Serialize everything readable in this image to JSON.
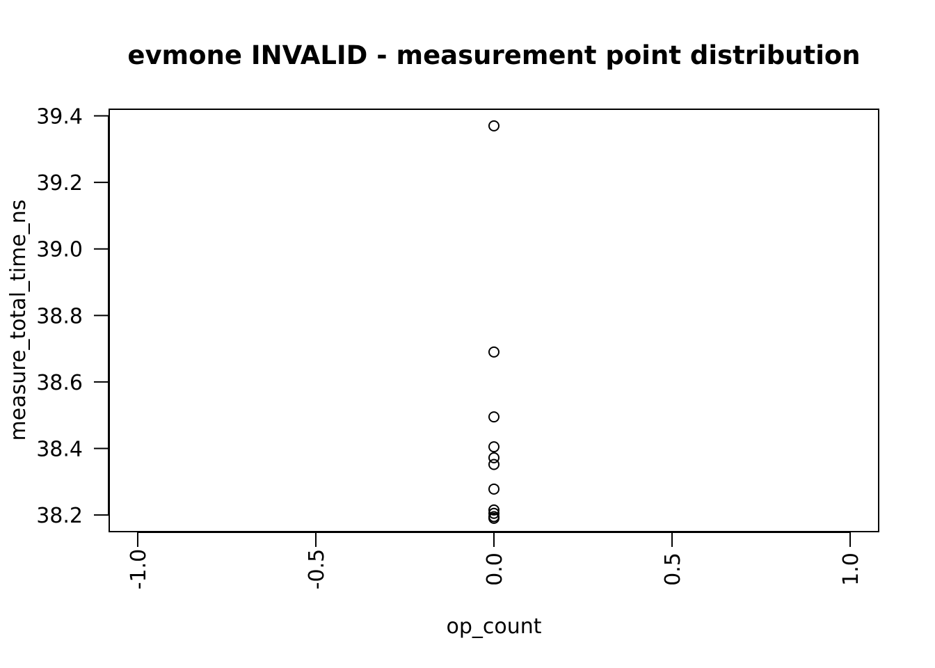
{
  "chart_data": {
    "type": "scatter",
    "title": "evmone INVALID - measurement point distribution",
    "xlabel": "op_count",
    "ylabel": "measure_total_time_ns",
    "xlim": [
      -1.08,
      1.08
    ],
    "ylim": [
      38.15,
      39.42
    ],
    "x_ticks": [
      -1.0,
      -0.5,
      0.0,
      0.5,
      1.0
    ],
    "x_tick_labels": [
      "-1.0",
      "-0.5",
      "0.0",
      "0.5",
      "1.0"
    ],
    "y_ticks": [
      38.2,
      38.4,
      38.6,
      38.8,
      39.0,
      39.2,
      39.4
    ],
    "y_tick_labels": [
      "38.2",
      "38.4",
      "38.6",
      "38.8",
      "39.0",
      "39.2",
      "39.4"
    ],
    "grid": false,
    "series": [
      {
        "x": [
          0,
          0,
          0,
          0,
          0,
          0,
          0,
          0,
          0,
          0,
          0
        ],
        "y": [
          39.37,
          38.69,
          38.495,
          38.405,
          38.372,
          38.352,
          38.278,
          38.215,
          38.205,
          38.195,
          38.19
        ]
      }
    ]
  }
}
